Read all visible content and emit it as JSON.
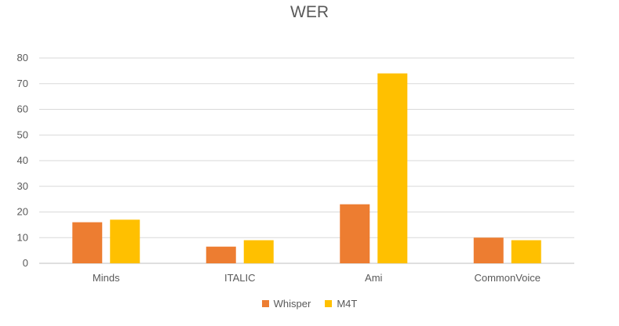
{
  "chart_data": {
    "type": "bar",
    "title": "WER",
    "categories": [
      "Minds",
      "ITALIC",
      "Ami",
      "CommonVoice"
    ],
    "series": [
      {
        "name": "Whisper",
        "values": [
          16,
          6.5,
          23,
          10
        ],
        "color": "#ED7D31"
      },
      {
        "name": "M4T",
        "values": [
          17,
          9,
          74,
          9
        ],
        "color": "#FFC000"
      }
    ],
    "yticks": [
      0,
      10,
      20,
      30,
      40,
      50,
      60,
      70,
      80
    ],
    "ylim": [
      0,
      80
    ],
    "grid": true,
    "legend": "bottom"
  }
}
